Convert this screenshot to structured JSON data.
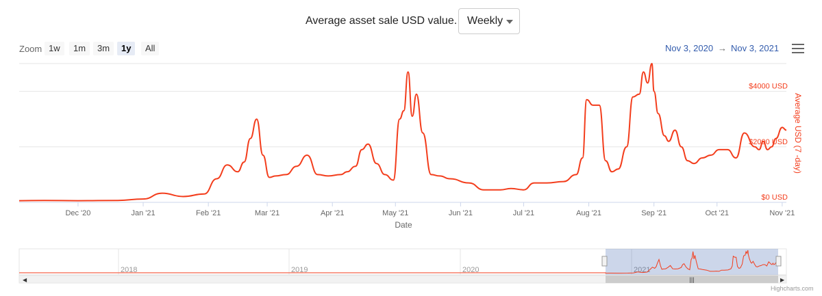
{
  "header": {
    "title": "Average asset sale USD value.",
    "interval_select": {
      "value": "Weekly",
      "options": [
        "Weekly"
      ]
    }
  },
  "range_selector": {
    "zoom_label": "Zoom",
    "buttons": [
      {
        "label": "1w",
        "active": false
      },
      {
        "label": "1m",
        "active": false
      },
      {
        "label": "3m",
        "active": false
      },
      {
        "label": "1y",
        "active": true
      },
      {
        "label": "All",
        "active": false
      }
    ],
    "from_date": "Nov 3, 2020",
    "arrow": "→",
    "to_date": "Nov 3, 2021"
  },
  "menu": {
    "icon": "hamburger-menu-icon"
  },
  "credits": "Highcharts.com",
  "colors": {
    "series": "#f33d1c",
    "axis_title": "#f33d1c",
    "accent_link": "#335cad"
  },
  "chart_data": {
    "type": "line",
    "title": "",
    "xlabel": "Date",
    "ylabel": "Average USD (7 -day)",
    "ylim": [
      0,
      5000
    ],
    "y_ticks": [
      {
        "value": 0,
        "label": "$0 USD"
      },
      {
        "value": 2000,
        "label": "$2000 USD"
      },
      {
        "value": 4000,
        "label": "$4000 USD"
      }
    ],
    "x_ticks": [
      "Dec '20",
      "Jan '21",
      "Feb '21",
      "Mar '21",
      "Apr '21",
      "May '21",
      "Jun '21",
      "Jul '21",
      "Aug '21",
      "Sep '21",
      "Oct '21",
      "Nov '21"
    ],
    "grid": true,
    "x": [
      "2020-11-03",
      "2020-11-15",
      "2020-12-01",
      "2020-12-20",
      "2021-01-01",
      "2021-01-10",
      "2021-01-20",
      "2021-01-30",
      "2021-02-05",
      "2021-02-10",
      "2021-02-15",
      "2021-02-18",
      "2021-02-21",
      "2021-02-24",
      "2021-02-27",
      "2021-03-02",
      "2021-03-05",
      "2021-03-10",
      "2021-03-15",
      "2021-03-20",
      "2021-03-25",
      "2021-03-30",
      "2021-04-05",
      "2021-04-08",
      "2021-04-12",
      "2021-04-15",
      "2021-04-18",
      "2021-04-22",
      "2021-04-26",
      "2021-04-30",
      "2021-05-03",
      "2021-05-05",
      "2021-05-07",
      "2021-05-09",
      "2021-05-11",
      "2021-05-14",
      "2021-05-18",
      "2021-05-22",
      "2021-05-27",
      "2021-06-05",
      "2021-06-12",
      "2021-06-20",
      "2021-06-25",
      "2021-07-01",
      "2021-07-06",
      "2021-07-12",
      "2021-07-20",
      "2021-07-26",
      "2021-07-29",
      "2021-07-31",
      "2021-08-03",
      "2021-08-06",
      "2021-08-09",
      "2021-08-12",
      "2021-08-15",
      "2021-08-19",
      "2021-08-22",
      "2021-08-25",
      "2021-08-27",
      "2021-08-29",
      "2021-08-31",
      "2021-09-01",
      "2021-09-03",
      "2021-09-06",
      "2021-09-08",
      "2021-09-11",
      "2021-09-14",
      "2021-09-17",
      "2021-09-20",
      "2021-09-24",
      "2021-09-28",
      "2021-10-02",
      "2021-10-06",
      "2021-10-10",
      "2021-10-14",
      "2021-10-19",
      "2021-10-21",
      "2021-10-23",
      "2021-10-25",
      "2021-10-27",
      "2021-10-29",
      "2021-11-01",
      "2021-11-03"
    ],
    "series": [
      {
        "values": [
          60,
          70,
          60,
          70,
          120,
          330,
          210,
          300,
          850,
          1350,
          1100,
          1450,
          2300,
          3000,
          1700,
          900,
          950,
          1000,
          1300,
          1700,
          1000,
          950,
          1000,
          1100,
          1300,
          1900,
          2100,
          1400,
          1000,
          800,
          3000,
          3300,
          4700,
          3100,
          3900,
          2500,
          1000,
          950,
          850,
          700,
          450,
          450,
          500,
          450,
          700,
          700,
          750,
          1000,
          1600,
          3700,
          3500,
          3500,
          1500,
          1100,
          1200,
          2000,
          3800,
          3900,
          4700,
          4300,
          5000,
          4000,
          3200,
          2400,
          2200,
          2600,
          2000,
          1500,
          1400,
          1600,
          1700,
          1900,
          1900,
          1600,
          2500,
          2000,
          1900,
          2200,
          1900,
          2000,
          2300,
          2700,
          2600
        ]
      }
    ]
  },
  "navigator": {
    "year_labels": [
      "2018",
      "2019",
      "2020",
      "2021"
    ]
  }
}
